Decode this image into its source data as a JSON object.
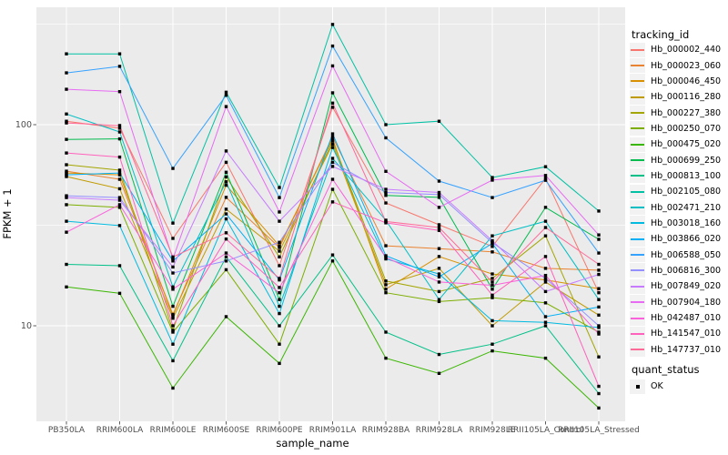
{
  "chart_data": {
    "type": "line",
    "xlabel": "sample_name",
    "ylabel": "FPKM + 1",
    "y_scale": "log10",
    "y_ticks": [
      10,
      100
    ],
    "y_minor_ticks": [
      31.6,
      316
    ],
    "ylim": [
      3.3,
      390
    ],
    "grid": "major-and-minor, white on grey panel",
    "legend_position": "right",
    "marker": "small black square on every point",
    "panel_color": "#EBEBEB",
    "categories": [
      "PB350LA",
      "RRIM600LA",
      "RRIM600LE",
      "RRIM600SE",
      "RRIM600PE",
      "RRIM901LA",
      "RRIM928BA",
      "RRIM928LA",
      "RRIM928LE",
      "RRII105LA_Control",
      "RRII105LA_Stressed"
    ],
    "legend": {
      "tracking_title": "tracking_id",
      "quant_title": "quant_status",
      "quant_items": [
        {
          "label": "OK"
        }
      ]
    },
    "series": [
      {
        "name": "Hb_000002_440",
        "color": "#F8766D",
        "values": [
          104,
          96,
          27.2,
          65,
          19.9,
          122,
          40.8,
          31.8,
          24.8,
          54,
          14.6
        ]
      },
      {
        "name": "Hb_000023_060",
        "color": "#EA8331",
        "values": [
          58.7,
          53.5,
          11.4,
          43.5,
          24.5,
          87,
          25,
          24.2,
          23.3,
          19.3,
          18.9
        ]
      },
      {
        "name": "Hb_000046_450",
        "color": "#D89000",
        "values": [
          57.5,
          56.3,
          11.2,
          50,
          25,
          85,
          15.2,
          22.1,
          18.1,
          16.9,
          15.3
        ]
      },
      {
        "name": "Hb_000116_280",
        "color": "#C09B00",
        "values": [
          55.2,
          48,
          10.9,
          38,
          23.5,
          80,
          16,
          19.3,
          10,
          16.5,
          11.3
        ]
      },
      {
        "name": "Hb_000227_380",
        "color": "#A3A500",
        "values": [
          63.2,
          59.4,
          9.5,
          55,
          22,
          83,
          16.7,
          14.8,
          17.2,
          28,
          7
        ]
      },
      {
        "name": "Hb_000250_070",
        "color": "#7CAE00",
        "values": [
          40,
          38.8,
          9.3,
          19,
          8.1,
          47.7,
          14.6,
          13.2,
          13.8,
          13,
          9.3
        ]
      },
      {
        "name": "Hb_000475_020",
        "color": "#39B600",
        "values": [
          15.6,
          14.5,
          4.9,
          11.1,
          6.5,
          21,
          6.9,
          5.8,
          7.5,
          6.9,
          3.9
        ]
      },
      {
        "name": "Hb_000699_250",
        "color": "#00BB4E",
        "values": [
          84.5,
          85,
          12.5,
          58,
          13.5,
          144,
          44.5,
          43.5,
          15.2,
          38.8,
          26.9
        ]
      },
      {
        "name": "Hb_000813_100",
        "color": "#00C087",
        "values": [
          20.2,
          19.9,
          6.7,
          22,
          10,
          22.5,
          9.3,
          7.2,
          8.1,
          10,
          4.6
        ]
      },
      {
        "name": "Hb_002105_080",
        "color": "#00C1A3",
        "values": [
          225,
          225,
          32.4,
          145,
          48.7,
          315,
          100,
          104,
          54.6,
          61.8,
          37.2
        ]
      },
      {
        "name": "Hb_002471_210",
        "color": "#00BFC4",
        "values": [
          113,
          92,
          15.6,
          52,
          12.5,
          68,
          33.5,
          13.5,
          28,
          33.1,
          13.5
        ]
      },
      {
        "name": "Hb_003018_160",
        "color": "#00BAE0",
        "values": [
          33.1,
          31.5,
          8.1,
          34,
          11.5,
          77,
          21.5,
          18.1,
          10.6,
          10.4,
          9.8
        ]
      },
      {
        "name": "Hb_003866_020",
        "color": "#00B0F6",
        "values": [
          56.3,
          57.5,
          21,
          36,
          16.9,
          90,
          22.3,
          17.5,
          25.7,
          11.1,
          12.4
        ]
      },
      {
        "name": "Hb_006588_050",
        "color": "#35A2FF",
        "values": [
          181,
          195,
          60.6,
          140,
          43.4,
          246,
          86,
          52.4,
          43.4,
          52.9,
          23
        ]
      },
      {
        "name": "Hb_006816_300",
        "color": "#9590FF",
        "values": [
          44.3,
          43.4,
          18.3,
          21,
          26,
          65,
          46,
          44.9,
          25.9,
          17.2,
          10
        ]
      },
      {
        "name": "Hb_007849_020",
        "color": "#C77CFF",
        "values": [
          43.4,
          42.1,
          19.6,
          74,
          33.1,
          62,
          47.7,
          46,
          26.5,
          14.8,
          18
        ]
      },
      {
        "name": "Hb_007904_180",
        "color": "#E76BF3",
        "values": [
          150,
          146,
          21.5,
          123,
          36.8,
          196,
          58.6,
          38.8,
          53,
          55.9,
          28.3
        ]
      },
      {
        "name": "Hb_042487_010",
        "color": "#FA62DB",
        "values": [
          29.2,
          40,
          15.2,
          23,
          14.6,
          53.5,
          21.9,
          16.5,
          15.9,
          17.8,
          9.1
        ]
      },
      {
        "name": "Hb_141547_010",
        "color": "#FF62BC",
        "values": [
          72.3,
          69,
          10,
          27,
          15.5,
          41.3,
          32.5,
          29.8,
          14.2,
          22.1,
          5
        ]
      },
      {
        "name": "Hb_147737_010",
        "color": "#FF6A98",
        "values": [
          102,
          99,
          22,
          29,
          17.2,
          128,
          33,
          30.8,
          16.5,
          30.8,
          20.2
        ]
      }
    ]
  }
}
